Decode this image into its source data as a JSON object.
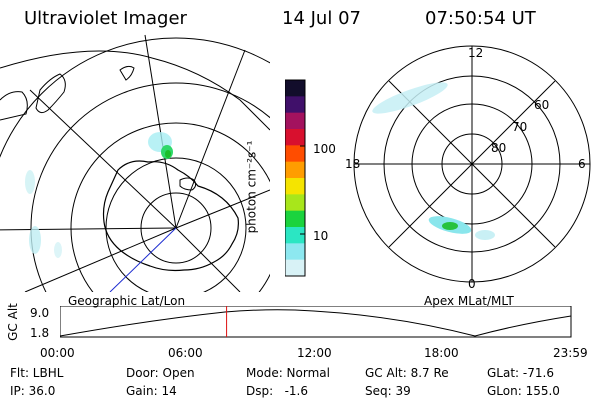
{
  "header": {
    "title": "Ultraviolet Imager",
    "date": "14 Jul 07",
    "time": "07:50:54 UT"
  },
  "left_map": {
    "caption": "Geographic Lat/Lon"
  },
  "right_map": {
    "caption": "Apex MLat/MLT",
    "mlt_labels": {
      "top": "12",
      "left": "18",
      "right": "6",
      "bottom": "0"
    },
    "lat_labels": [
      "60",
      "70",
      "80"
    ]
  },
  "colorbar": {
    "unit_label": "photon cm⁻²s⁻¹",
    "ticks": [
      "100",
      "10"
    ],
    "colors": [
      "#120d2b",
      "#40106a",
      "#a3125e",
      "#d8102e",
      "#ff4d00",
      "#ff9d00",
      "#f5e400",
      "#a8e61b",
      "#1bd33e",
      "#2be6c3",
      "#8de8f0",
      "#d8f2f6"
    ]
  },
  "timeline": {
    "ylabel": "GC Alt",
    "yticks": [
      "9.0",
      "1.8"
    ],
    "xticks": [
      "00:00",
      "06:00",
      "12:00",
      "18:00",
      "23:59"
    ],
    "current_time_fraction": 0.326
  },
  "status": {
    "row1": {
      "flt": "Flt: LBHL",
      "door": "Door: Open",
      "mode": "Mode: Normal",
      "gcalt": "GC Alt: 8.7 Re",
      "glat": "GLat: -71.6"
    },
    "row2": {
      "ip": "IP: 36.0",
      "gain": "Gain: 14",
      "dsp": "Dsp:   -1.6",
      "seq": "Seq: 39",
      "glon": "GLon: 155.0"
    }
  }
}
